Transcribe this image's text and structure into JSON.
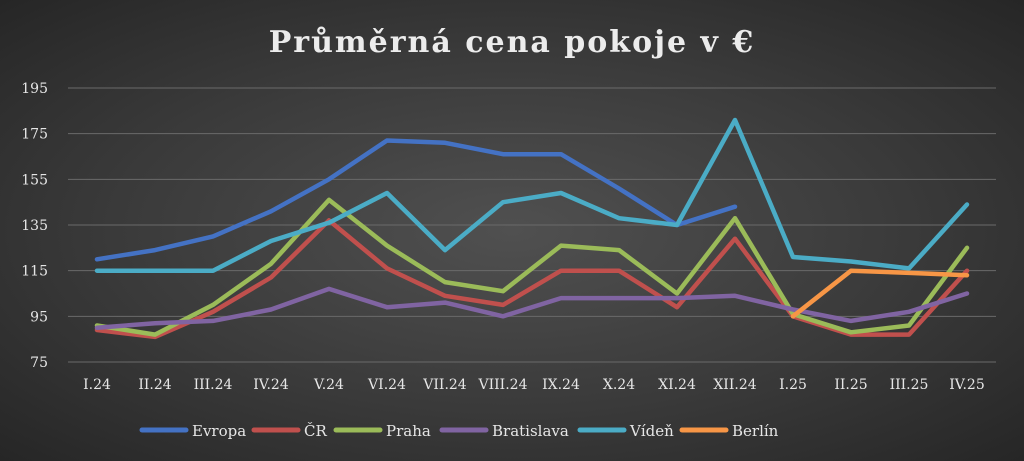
{
  "chart_data": {
    "type": "line",
    "title": "Průměrná cena pokoje v €",
    "categories": [
      "I.24",
      "II.24",
      "III.24",
      "IV.24",
      "V.24",
      "VI.24",
      "VII.24",
      "VIII.24",
      "IX.24",
      "X.24",
      "XI.24",
      "XII.24",
      "I.25",
      "II.25",
      "III.25",
      "IV.25"
    ],
    "ylim": [
      75,
      195
    ],
    "yticks": [
      75,
      95,
      115,
      135,
      155,
      175,
      195
    ],
    "grid": true,
    "legend_position": "bottom",
    "series": [
      {
        "name": "Evropa",
        "color": "#4472c4",
        "values": [
          120,
          124,
          130,
          141,
          155,
          172,
          171,
          166,
          166,
          151,
          135,
          143,
          null,
          null,
          null,
          null
        ]
      },
      {
        "name": "ČR",
        "color": "#c0504d",
        "values": [
          89,
          86,
          97,
          112,
          137,
          116,
          104,
          100,
          115,
          115,
          99,
          129,
          95,
          87,
          87,
          115
        ]
      },
      {
        "name": "Praha",
        "color": "#9bbb59",
        "values": [
          91,
          87,
          100,
          118,
          146,
          126,
          110,
          106,
          126,
          124,
          105,
          138,
          96,
          88,
          91,
          125
        ]
      },
      {
        "name": "Bratislava",
        "color": "#8064a2",
        "values": [
          90,
          92,
          93,
          98,
          107,
          99,
          101,
          95,
          103,
          103,
          103,
          104,
          98,
          93,
          97,
          105
        ]
      },
      {
        "name": "Vídeň",
        "color": "#4bacc6",
        "values": [
          115,
          115,
          115,
          128,
          136,
          149,
          124,
          145,
          149,
          138,
          135,
          181,
          121,
          119,
          116,
          144
        ]
      },
      {
        "name": "Berlín",
        "color": "#f79646",
        "values": [
          null,
          null,
          null,
          null,
          null,
          null,
          null,
          null,
          null,
          null,
          null,
          null,
          95,
          115,
          114,
          113
        ]
      }
    ]
  }
}
